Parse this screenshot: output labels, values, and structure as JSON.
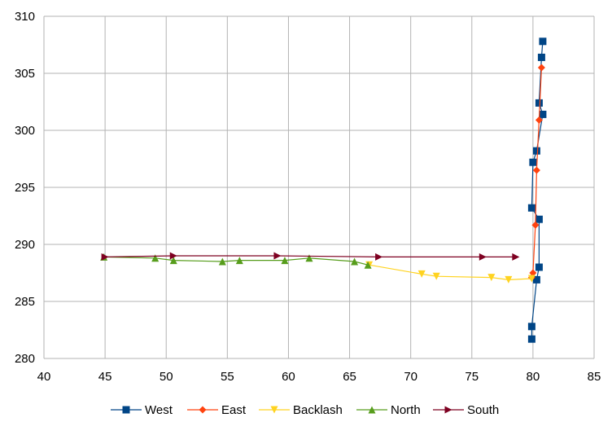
{
  "chart_data": {
    "type": "scatter",
    "title": "",
    "xlabel": "",
    "ylabel": "",
    "xlim": [
      40,
      85
    ],
    "ylim": [
      280,
      310
    ],
    "xticks": [
      40,
      45,
      50,
      55,
      60,
      65,
      70,
      75,
      80,
      85
    ],
    "yticks": [
      280,
      285,
      290,
      295,
      300,
      305,
      310
    ],
    "grid": true,
    "legend": "bottom",
    "series": [
      {
        "name": "West",
        "color": "#004586",
        "marker": "square",
        "points": [
          [
            79.9,
            281.7
          ],
          [
            79.9,
            282.8
          ],
          [
            80.3,
            286.9
          ],
          [
            80.5,
            288.0
          ],
          [
            80.5,
            292.2
          ],
          [
            79.9,
            293.2
          ],
          [
            80.0,
            297.2
          ],
          [
            80.3,
            298.2
          ],
          [
            80.8,
            301.4
          ],
          [
            80.5,
            302.4
          ],
          [
            80.7,
            306.4
          ],
          [
            80.8,
            307.8
          ]
        ]
      },
      {
        "name": "East",
        "color": "#ff420e",
        "marker": "diamond",
        "points": [
          [
            79.9,
            287.1
          ],
          [
            80.0,
            287.5
          ],
          [
            80.2,
            291.7
          ],
          [
            80.3,
            296.5
          ],
          [
            80.5,
            300.9
          ],
          [
            80.7,
            305.5
          ]
        ]
      },
      {
        "name": "Backlash",
        "color": "#ffd320",
        "marker": "triangle-down",
        "points": [
          [
            66.6,
            288.2
          ],
          [
            70.9,
            287.4
          ],
          [
            72.1,
            287.2
          ],
          [
            76.6,
            287.1
          ],
          [
            78.0,
            286.9
          ],
          [
            79.9,
            287.0
          ]
        ]
      },
      {
        "name": "North",
        "color": "#579d1c",
        "marker": "triangle-up",
        "points": [
          [
            44.9,
            288.9
          ],
          [
            49.1,
            288.8
          ],
          [
            50.6,
            288.6
          ],
          [
            54.6,
            288.5
          ],
          [
            56.0,
            288.6
          ],
          [
            59.7,
            288.6
          ],
          [
            61.7,
            288.8
          ],
          [
            65.4,
            288.5
          ],
          [
            66.5,
            288.2
          ]
        ]
      },
      {
        "name": "South",
        "color": "#7e0021",
        "marker": "triangle-right",
        "points": [
          [
            45.0,
            288.9
          ],
          [
            50.6,
            289.0
          ],
          [
            59.1,
            289.0
          ],
          [
            67.4,
            288.9
          ],
          [
            75.9,
            288.9
          ],
          [
            78.6,
            288.9
          ]
        ]
      }
    ]
  }
}
